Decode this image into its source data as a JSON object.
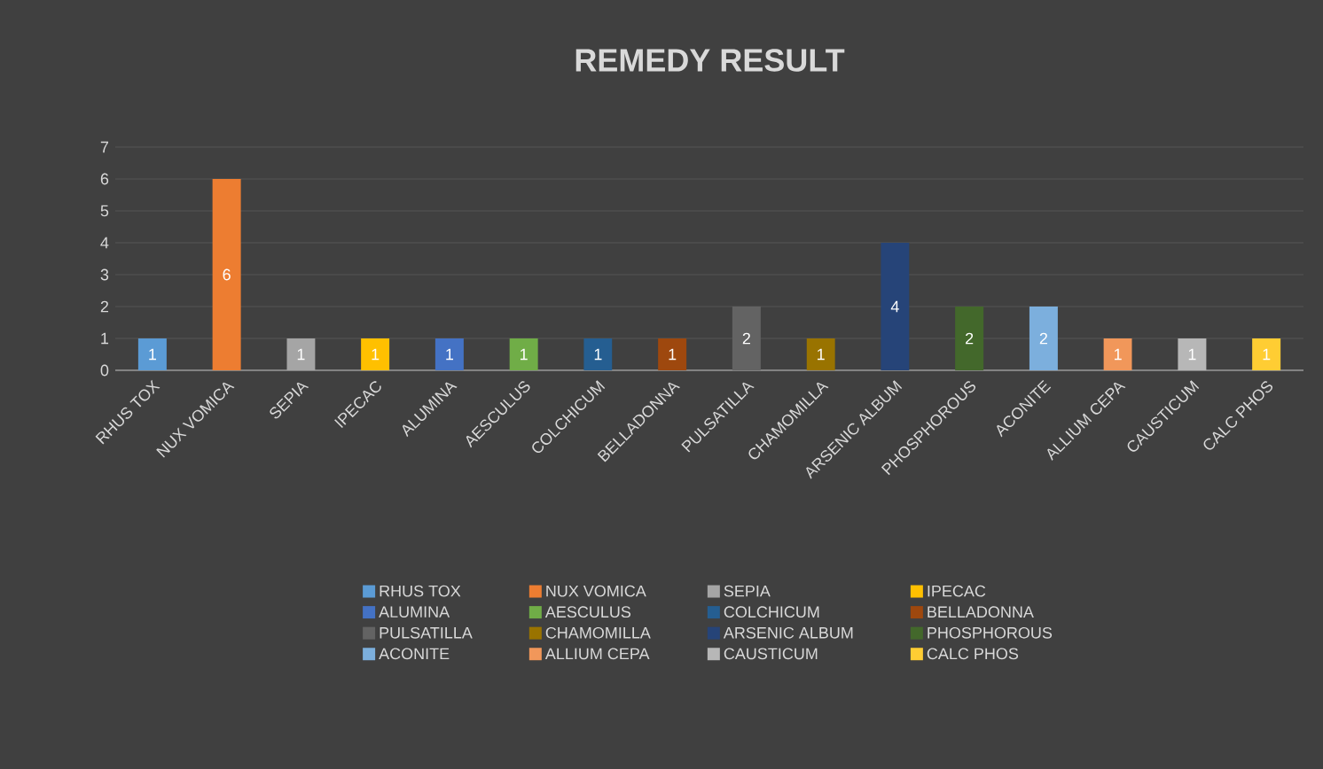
{
  "chart_data": {
    "type": "bar",
    "title": "REMEDY RESULT",
    "categories": [
      "RHUS TOX",
      "NUX VOMICA",
      "SEPIA",
      "IPECAC",
      "ALUMINA",
      "AESCULUS",
      "COLCHICUM",
      "BELLADONNA",
      "PULSATILLA",
      "CHAMOMILLA",
      "ARSENIC ALBUM",
      "PHOSPHOROUS",
      "ACONITE",
      "ALLIUM CEPA",
      "CAUSTICUM",
      "CALC PHOS"
    ],
    "series": [
      {
        "name": "RHUS TOX",
        "color": "#5b9bd5",
        "values": [
          1,
          null,
          null,
          null,
          null,
          null,
          null,
          null,
          null,
          null,
          null,
          null,
          null,
          null,
          null,
          null
        ]
      },
      {
        "name": "NUX VOMICA",
        "color": "#ed7d31",
        "values": [
          null,
          6,
          null,
          null,
          null,
          null,
          null,
          null,
          null,
          null,
          null,
          null,
          null,
          null,
          null,
          null
        ]
      },
      {
        "name": "SEPIA",
        "color": "#a5a5a5",
        "values": [
          null,
          null,
          1,
          null,
          null,
          null,
          null,
          null,
          null,
          null,
          null,
          null,
          null,
          null,
          null,
          null
        ]
      },
      {
        "name": "IPECAC",
        "color": "#ffc000",
        "values": [
          null,
          null,
          null,
          1,
          null,
          null,
          null,
          null,
          null,
          null,
          null,
          null,
          null,
          null,
          null,
          null
        ]
      },
      {
        "name": "ALUMINA",
        "color": "#4472c4",
        "values": [
          null,
          null,
          null,
          null,
          1,
          null,
          null,
          null,
          null,
          null,
          null,
          null,
          null,
          null,
          null,
          null
        ]
      },
      {
        "name": "AESCULUS",
        "color": "#70ad47",
        "values": [
          null,
          null,
          null,
          null,
          null,
          1,
          null,
          null,
          null,
          null,
          null,
          null,
          null,
          null,
          null,
          null
        ]
      },
      {
        "name": "COLCHICUM",
        "color": "#255e91",
        "values": [
          null,
          null,
          null,
          null,
          null,
          null,
          1,
          null,
          null,
          null,
          null,
          null,
          null,
          null,
          null,
          null
        ]
      },
      {
        "name": "BELLADONNA",
        "color": "#9e480e",
        "values": [
          null,
          null,
          null,
          null,
          null,
          null,
          null,
          1,
          null,
          null,
          null,
          null,
          null,
          null,
          null,
          null
        ]
      },
      {
        "name": "PULSATILLA",
        "color": "#636363",
        "values": [
          null,
          null,
          null,
          null,
          null,
          null,
          null,
          null,
          2,
          null,
          null,
          null,
          null,
          null,
          null,
          null
        ]
      },
      {
        "name": "CHAMOMILLA",
        "color": "#997300",
        "values": [
          null,
          null,
          null,
          null,
          null,
          null,
          null,
          null,
          null,
          1,
          null,
          null,
          null,
          null,
          null,
          null
        ]
      },
      {
        "name": "ARSENIC ALBUM",
        "color": "#264478",
        "values": [
          null,
          null,
          null,
          null,
          null,
          null,
          null,
          null,
          null,
          null,
          4,
          null,
          null,
          null,
          null,
          null
        ]
      },
      {
        "name": "PHOSPHOROUS",
        "color": "#43682b",
        "values": [
          null,
          null,
          null,
          null,
          null,
          null,
          null,
          null,
          null,
          null,
          null,
          2,
          null,
          null,
          null,
          null
        ]
      },
      {
        "name": "ACONITE",
        "color": "#7cafdd",
        "values": [
          null,
          null,
          null,
          null,
          null,
          null,
          null,
          null,
          null,
          null,
          null,
          null,
          2,
          null,
          null,
          null
        ]
      },
      {
        "name": "ALLIUM CEPA",
        "color": "#f1975a",
        "values": [
          null,
          null,
          null,
          null,
          null,
          null,
          null,
          null,
          null,
          null,
          null,
          null,
          null,
          1,
          null,
          null
        ]
      },
      {
        "name": "CAUSTICUM",
        "color": "#b7b7b7",
        "values": [
          null,
          null,
          null,
          null,
          null,
          null,
          null,
          null,
          null,
          null,
          null,
          null,
          null,
          null,
          1,
          null
        ]
      },
      {
        "name": "CALC PHOS",
        "color": "#ffcd33",
        "values": [
          null,
          null,
          null,
          null,
          null,
          null,
          null,
          null,
          null,
          null,
          null,
          null,
          null,
          null,
          null,
          1
        ]
      }
    ],
    "ylim": [
      0,
      7
    ],
    "yticks": [
      0,
      1,
      2,
      3,
      4,
      5,
      6,
      7
    ],
    "grid": "y",
    "legend": "bottom",
    "data_labels": true
  }
}
